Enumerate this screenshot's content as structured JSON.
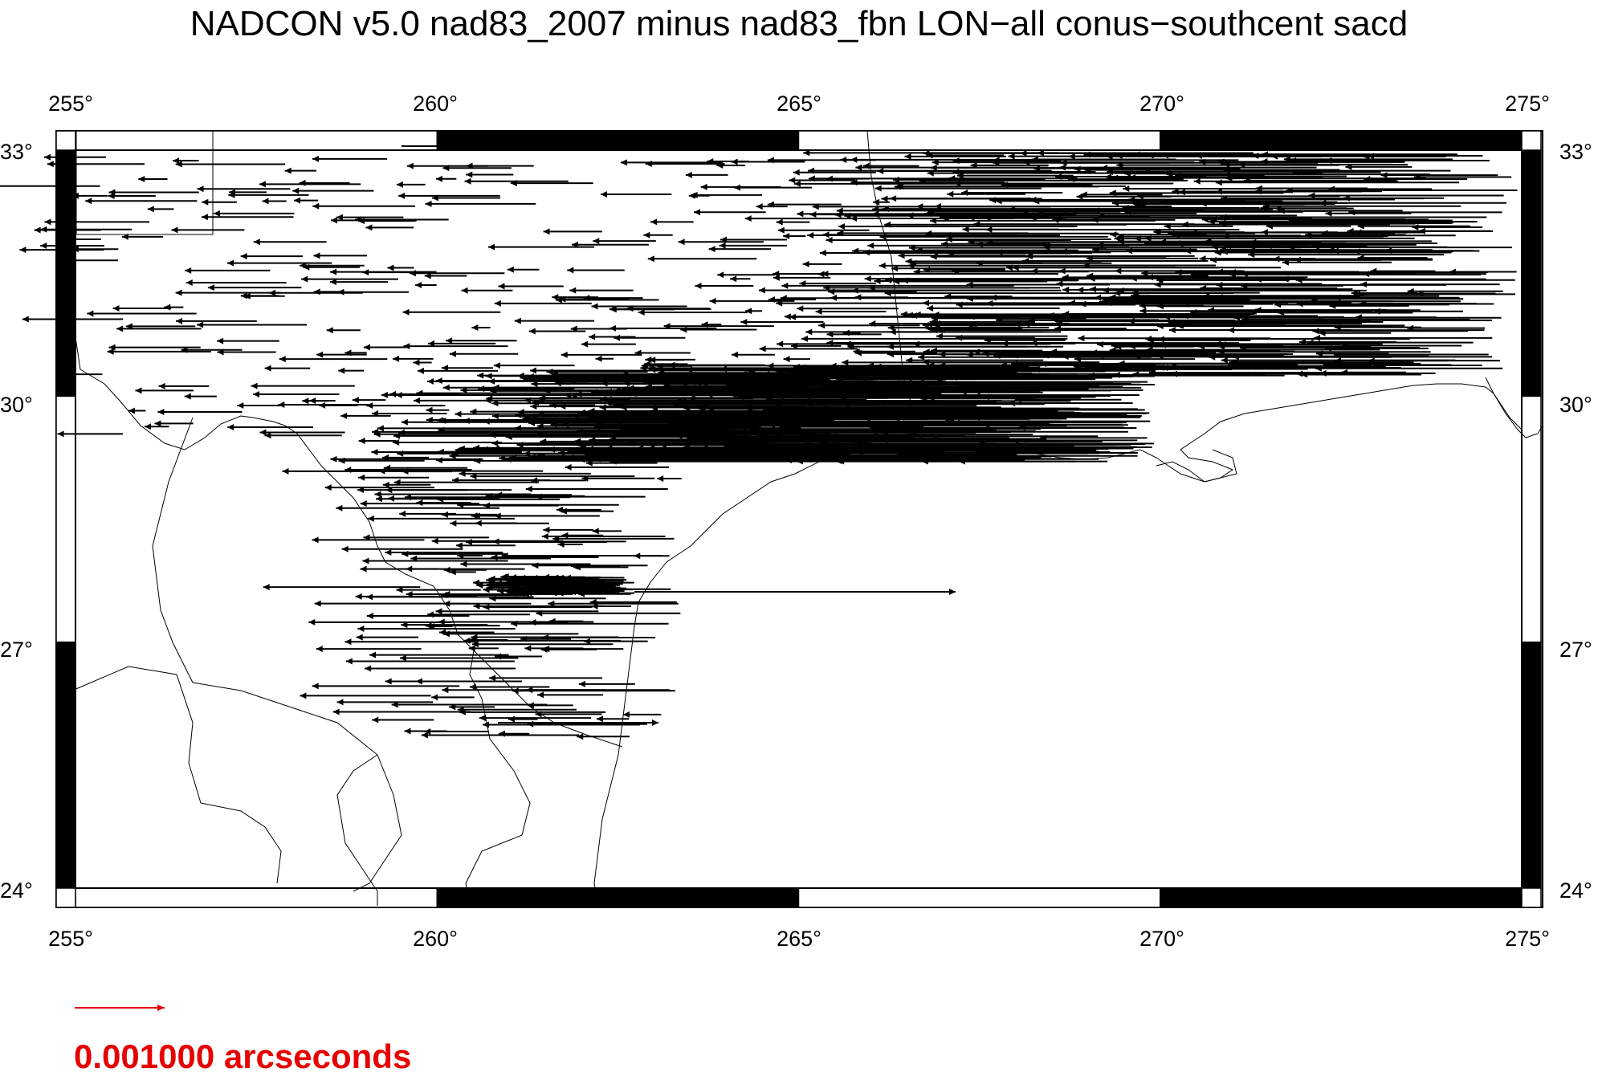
{
  "title": "NADCON v5.0 nad83_2007 minus nad83_fbn LON−all  conus−southcent sacd",
  "map": {
    "lon_range": [
      255,
      275
    ],
    "lat_range": [
      24,
      33
    ],
    "lon_ticks": [
      "255°",
      "260°",
      "265°",
      "270°",
      "275°"
    ],
    "lat_ticks": [
      "33°",
      "30°",
      "27°",
      "24°"
    ],
    "lon_tick_values": [
      255,
      260,
      265,
      270,
      275
    ],
    "lat_tick_values": [
      33,
      30,
      27,
      24
    ],
    "frame_colors": {
      "ink": "#000000",
      "paper": "#ffffff"
    }
  },
  "legend": {
    "label": "0.001000 arcseconds",
    "color": "#e60000"
  },
  "vectors": {
    "direction": "west",
    "color": "#000000"
  }
}
